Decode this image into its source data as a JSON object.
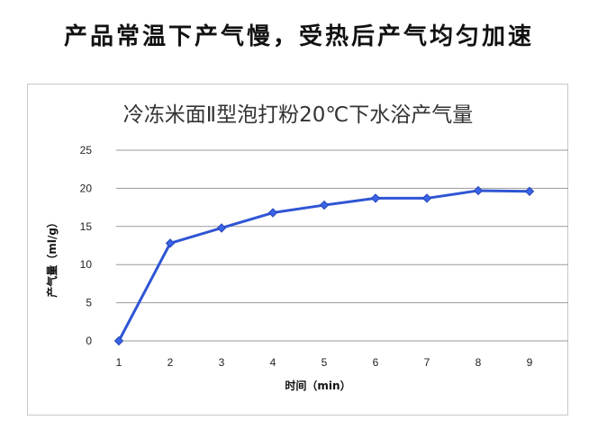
{
  "headline": "产品常温下产气慢，受热后产气均匀加速",
  "colors": {
    "series": "#2f55d4",
    "marker": "#3a64e6",
    "grid": "#9a9a9a"
  },
  "chart_data": {
    "type": "line",
    "title": "冷冻米面Ⅱ型泡打粉20℃下水浴产气量",
    "xlabel": "时间（min）",
    "ylabel": "产气量（ml/g）",
    "categories": [
      "1",
      "2",
      "3",
      "4",
      "5",
      "6",
      "7",
      "8",
      "9"
    ],
    "series": [
      {
        "values": [
          0,
          12.8,
          14.8,
          16.8,
          17.8,
          18.7,
          18.7,
          19.7,
          19.6
        ]
      }
    ],
    "ylim": [
      0,
      25
    ],
    "yticks": [
      "0",
      "5",
      "10",
      "15",
      "20",
      "25"
    ],
    "grid": true,
    "legend": "none"
  }
}
